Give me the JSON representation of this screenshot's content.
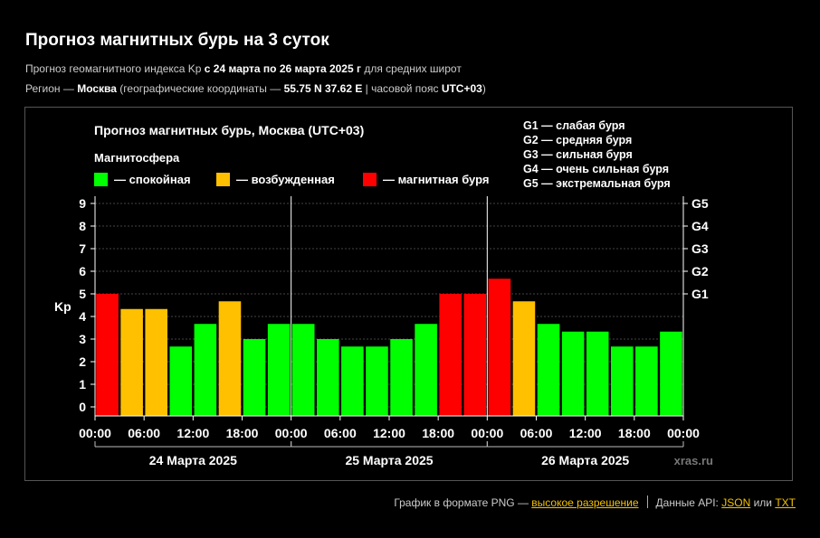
{
  "header": {
    "title": "Прогноз магнитных бурь на 3 суток",
    "line1_prefix": "Прогноз геомагнитного индекса Kp ",
    "line1_bold": "с 24 марта по 26 марта 2025 г",
    "line1_suffix": " для средних широт",
    "line2_prefix": "Регион — ",
    "line2_region": "Москва",
    "line2_mid": " (географические координаты — ",
    "line2_coords": "55.75 N 37.62 E",
    "line2_tz_prefix": " | часовой пояс ",
    "line2_tz": "UTC+03",
    "line2_end": ")"
  },
  "chart_data": {
    "type": "bar",
    "title": "Прогноз магнитных бурь, Москва (UTC+03)",
    "legend_title": "Магнитосфера",
    "legend": [
      {
        "label": "— спокойная",
        "color": "#00ff00"
      },
      {
        "label": "— возбужденная",
        "color": "#ffc000"
      },
      {
        "label": "— магнитная буря",
        "color": "#ff0000"
      }
    ],
    "g_legend": [
      "G1 — слабая буря",
      "G2 — средняя буря",
      "G3 — сильная буря",
      "G4 — очень сильная буря",
      "G5 — экстремальная буря"
    ],
    "ylabel": "Kp",
    "ylim": [
      0,
      9
    ],
    "yticks": [
      "0",
      "1",
      "2",
      "3",
      "4",
      "5",
      "6",
      "7",
      "8",
      "9"
    ],
    "g_ticks": [
      {
        "kp": 5,
        "label": "G1"
      },
      {
        "kp": 6,
        "label": "G2"
      },
      {
        "kp": 7,
        "label": "G3"
      },
      {
        "kp": 8,
        "label": "G4"
      },
      {
        "kp": 9,
        "label": "G5"
      }
    ],
    "x_tick_labels": [
      "00:00",
      "06:00",
      "12:00",
      "18:00",
      "00:00",
      "06:00",
      "12:00",
      "18:00",
      "00:00",
      "06:00",
      "12:00",
      "18:00",
      "00:00"
    ],
    "days": [
      "24 Марта 2025",
      "25 Марта 2025",
      "26 Марта 2025"
    ],
    "values": [
      5.0,
      4.33,
      4.33,
      2.67,
      3.67,
      4.67,
      3.0,
      3.67,
      3.67,
      3.0,
      2.67,
      2.67,
      3.0,
      3.67,
      5.0,
      5.0,
      5.67,
      4.67,
      3.67,
      3.33,
      3.33,
      2.67,
      2.67,
      3.33
    ],
    "colors": {
      "quiet": "#00ff00",
      "active": "#ffc000",
      "storm": "#ff0000"
    },
    "grid": true,
    "watermark": "xras.ru"
  },
  "footer": {
    "png_text": "График в формате PNG — ",
    "png_link": "высокое разрешение",
    "api_text": "Данные API: ",
    "json_link": "JSON",
    "or_text": " или ",
    "txt_link": "TXT"
  }
}
